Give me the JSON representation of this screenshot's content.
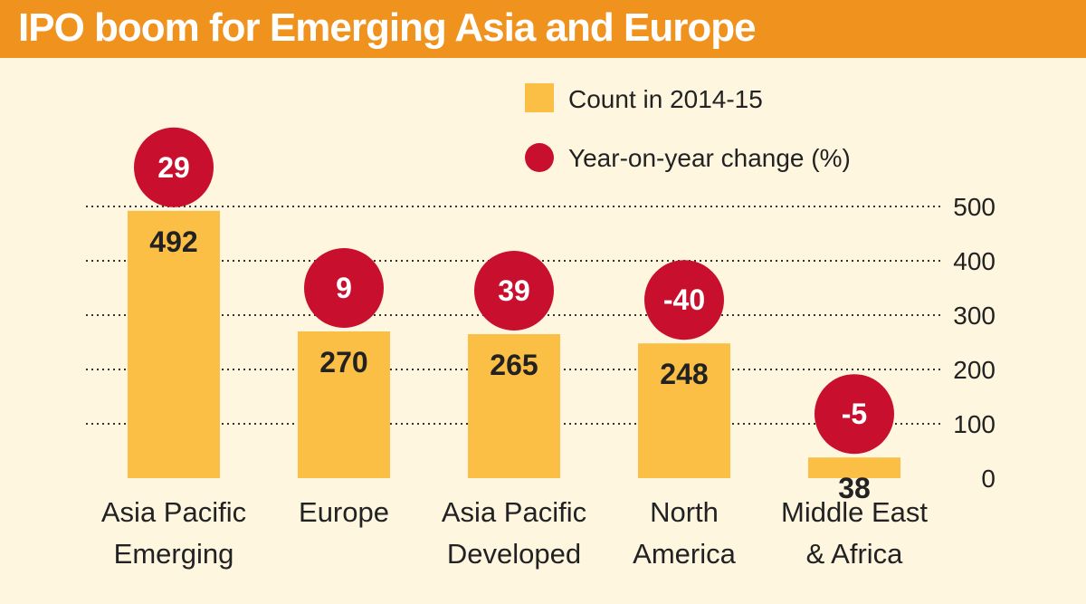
{
  "header": {
    "title": "IPO boom for Emerging Asia and Europe"
  },
  "colors": {
    "header_bg": "#f0931e",
    "bar": "#fcbf45",
    "circle": "#c8102e",
    "background": "#fff6e0"
  },
  "legend": {
    "count_label": "Count in 2014-15",
    "change_label": "Year-on-year change (%)"
  },
  "chart_data": {
    "type": "bar",
    "title": "IPO boom for Emerging Asia and Europe",
    "categories": [
      [
        "Asia Pacific",
        "Emerging"
      ],
      [
        "Europe"
      ],
      [
        "Asia Pacific",
        "Developed"
      ],
      [
        "North",
        "America"
      ],
      [
        "Middle East",
        "& Africa"
      ]
    ],
    "series": [
      {
        "name": "Count in 2014-15",
        "values": [
          492,
          270,
          265,
          248,
          38
        ]
      },
      {
        "name": "Year-on-year change (%)",
        "values": [
          29,
          9,
          39,
          -40,
          -5
        ]
      }
    ],
    "y_ticks": [
      0,
      100,
      200,
      300,
      400,
      500
    ],
    "ylim": [
      0,
      500
    ],
    "grid": true,
    "legend_position": "top-right",
    "y_axis_side": "right"
  }
}
